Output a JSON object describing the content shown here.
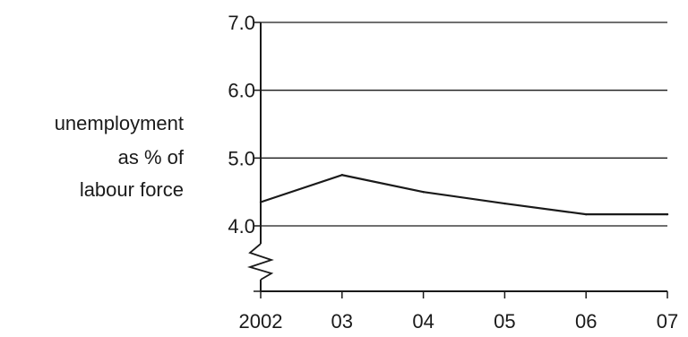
{
  "chart_data": {
    "type": "line",
    "title": "",
    "xlabel": "",
    "ylabel_lines": [
      "unemployment",
      "as % of",
      "labour force"
    ],
    "x": [
      2002,
      2003,
      2004,
      2005,
      2006,
      2007
    ],
    "x_tick_labels": [
      "2002",
      "03",
      "04",
      "05",
      "06",
      "07"
    ],
    "y_ticks": [
      4.0,
      5.0,
      6.0,
      7.0
    ],
    "y_tick_labels": [
      "4.0",
      "5.0",
      "6.0",
      "7.0"
    ],
    "ylim": [
      3.0,
      7.0
    ],
    "y_axis_break": true,
    "grid": "horizontal",
    "series": [
      {
        "values": [
          4.35,
          4.75,
          4.5,
          4.33,
          4.17,
          4.17
        ],
        "color": "#1a1a1a"
      }
    ]
  }
}
